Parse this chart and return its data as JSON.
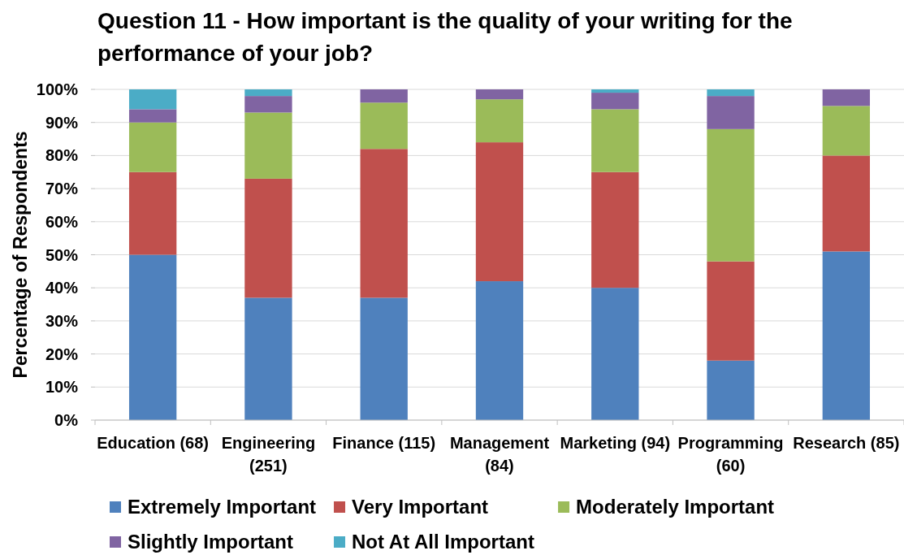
{
  "chart_data": {
    "type": "bar",
    "title": "Question 11 - How important is the quality of your writing for the performance of your job?",
    "ylabel": "Percentage of Respondents",
    "categories": [
      "Education (68)",
      "Engineering (251)",
      "Finance (115)",
      "Management (84)",
      "Marketing (94)",
      "Programming (60)",
      "Research (85)"
    ],
    "series": [
      {
        "name": "Extremely Important",
        "color": "#4f81bd",
        "values": [
          50,
          37,
          37,
          42,
          40,
          18,
          51
        ]
      },
      {
        "name": "Very Important",
        "color": "#c0504d",
        "values": [
          25,
          36,
          45,
          42,
          35,
          30,
          29
        ]
      },
      {
        "name": "Moderately Important",
        "color": "#9bbb59",
        "values": [
          15,
          20,
          14,
          13,
          19,
          40,
          15
        ]
      },
      {
        "name": "Slightly Important",
        "color": "#8064a2",
        "values": [
          4,
          5,
          4,
          3,
          5,
          10,
          5
        ]
      },
      {
        "name": "Not At All Important",
        "color": "#4bacc6",
        "values": [
          6,
          2,
          0,
          0,
          1,
          2,
          0
        ]
      }
    ],
    "stacked": true,
    "ylim": [
      0,
      100
    ],
    "yticks": [
      {
        "value": 0,
        "label": "0%"
      },
      {
        "value": 10,
        "label": "10%"
      },
      {
        "value": 20,
        "label": "20%"
      },
      {
        "value": 30,
        "label": "30%"
      },
      {
        "value": 40,
        "label": "40%"
      },
      {
        "value": 50,
        "label": "50%"
      },
      {
        "value": 60,
        "label": "60%"
      },
      {
        "value": 70,
        "label": "70%"
      },
      {
        "value": 80,
        "label": "80%"
      },
      {
        "value": 90,
        "label": "90%"
      },
      {
        "value": 100,
        "label": "100%"
      }
    ],
    "grid": "y",
    "legend": "bottom"
  }
}
